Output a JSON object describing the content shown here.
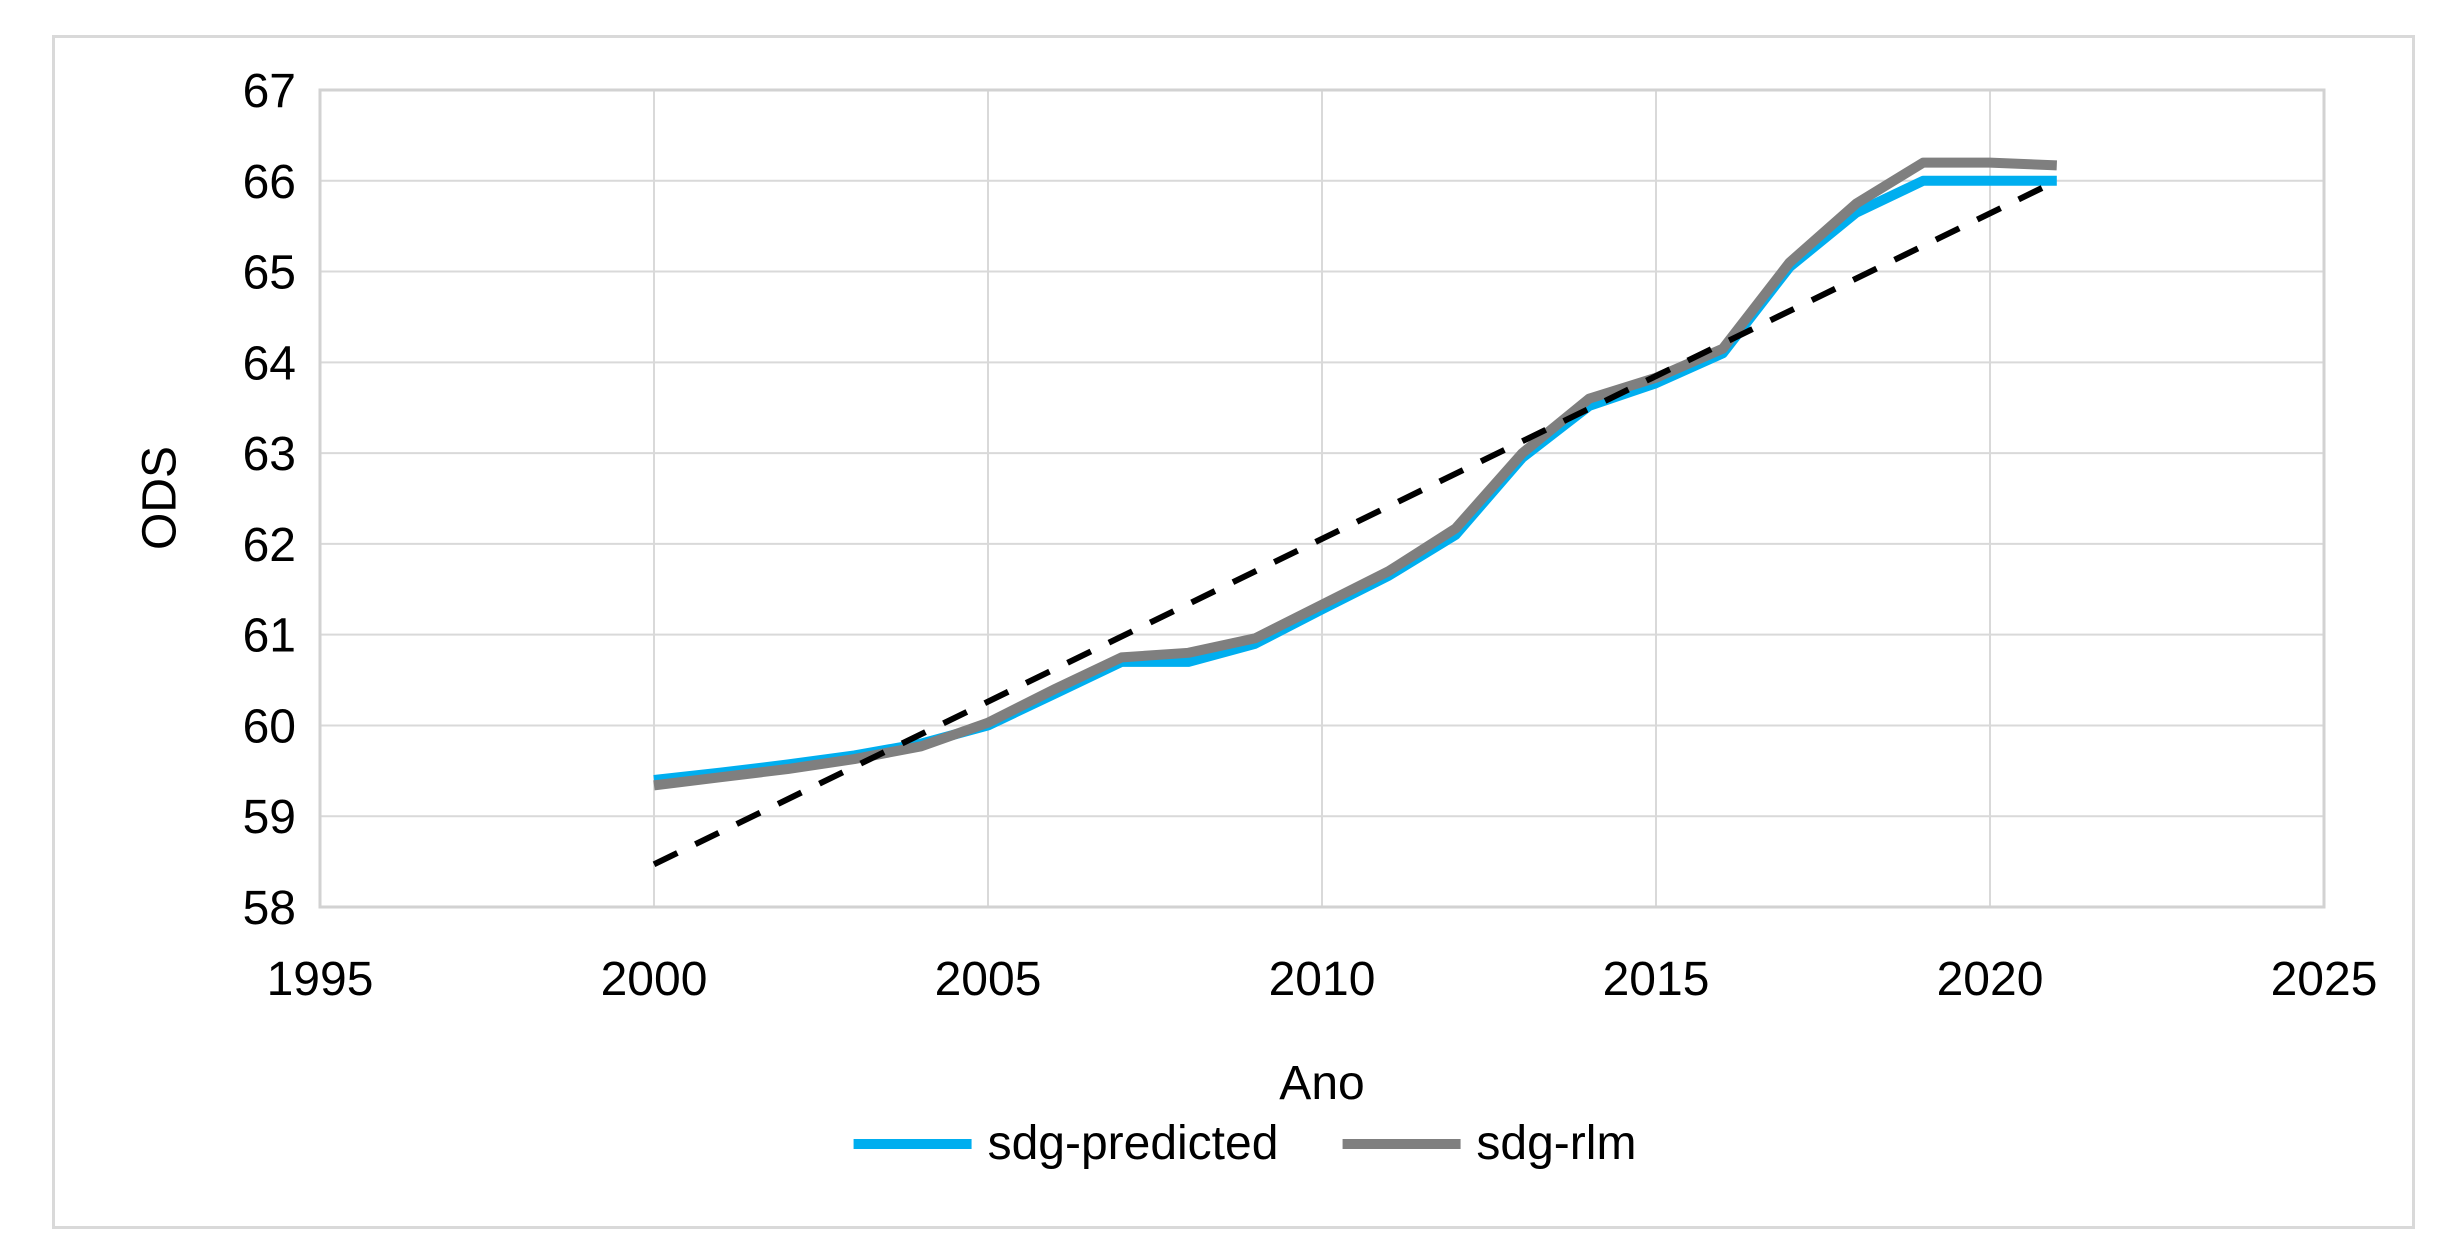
{
  "axes": {
    "x_title": "Ano",
    "y_title": "ODS"
  },
  "colors": {
    "background": "#FFFFFF",
    "frame_border": "#D9D9D9",
    "gridline": "#D9D9D9",
    "plot_border": "#D2D2D2",
    "series_predicted": "#00AEEF",
    "series_rlm": "#7F7F7F",
    "trend_dashed": "#000000",
    "tick_text": "#000000"
  },
  "legend": {
    "items": [
      {
        "label": "sdg-predicted",
        "color": "#00AEEF",
        "style": "solid"
      },
      {
        "label": "sdg-rlm",
        "color": "#7F7F7F",
        "style": "solid"
      }
    ]
  },
  "chart_data": {
    "type": "line",
    "title": "",
    "xlabel": "Ano",
    "ylabel": "ODS",
    "xlim": [
      1995,
      2025
    ],
    "ylim": [
      58,
      67
    ],
    "x_ticks": [
      1995,
      2000,
      2005,
      2010,
      2015,
      2020,
      2025
    ],
    "y_ticks": [
      58,
      59,
      60,
      61,
      62,
      63,
      64,
      65,
      66,
      67
    ],
    "grid": true,
    "legend_position": "bottom",
    "series": [
      {
        "name": "sdg-predicted",
        "color": "#00AEEF",
        "style": "solid",
        "width": 10,
        "in_legend": true,
        "x": [
          2000,
          2001,
          2002,
          2003,
          2004,
          2005,
          2006,
          2007,
          2008,
          2009,
          2010,
          2011,
          2012,
          2013,
          2014,
          2015,
          2016,
          2017,
          2018,
          2019,
          2020,
          2021
        ],
        "values": [
          59.4,
          59.48,
          59.57,
          59.67,
          59.8,
          60.0,
          60.35,
          60.7,
          60.7,
          60.9,
          61.28,
          61.65,
          62.1,
          62.95,
          63.52,
          63.77,
          64.1,
          65.05,
          65.65,
          66.0,
          66.0,
          66.0
        ]
      },
      {
        "name": "sdg-rlm",
        "color": "#7F7F7F",
        "style": "solid",
        "width": 10,
        "in_legend": true,
        "x": [
          2000,
          2001,
          2002,
          2003,
          2004,
          2005,
          2006,
          2007,
          2008,
          2009,
          2010,
          2011,
          2012,
          2013,
          2014,
          2015,
          2016,
          2017,
          2018,
          2019,
          2020,
          2021
        ],
        "values": [
          59.34,
          59.43,
          59.52,
          59.63,
          59.77,
          60.03,
          60.4,
          60.75,
          60.8,
          60.96,
          61.33,
          61.7,
          62.17,
          63.0,
          63.6,
          63.83,
          64.15,
          65.1,
          65.75,
          66.2,
          66.2,
          66.17
        ]
      },
      {
        "name": "linear-trend",
        "color": "#000000",
        "style": "dashed",
        "width": 6,
        "in_legend": false,
        "x": [
          2000,
          2021
        ],
        "values": [
          58.47,
          66.0
        ]
      }
    ]
  }
}
